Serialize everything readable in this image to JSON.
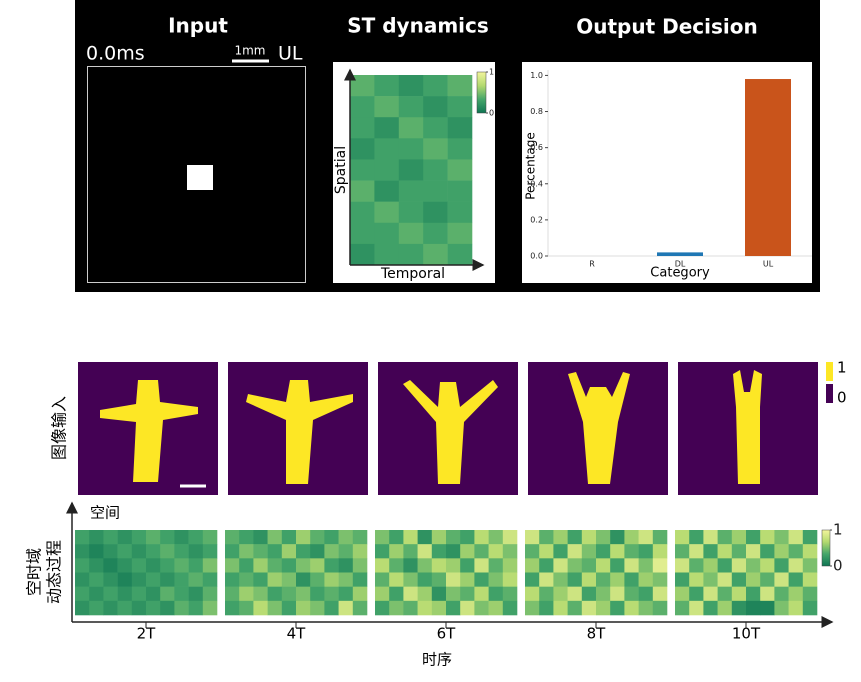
{
  "input_panel": {
    "title": "Input",
    "time": "0.0ms",
    "scale_label": "1mm",
    "class_label": "UL",
    "output_title": "Output Decision"
  },
  "image_row": {
    "label": "图像输入",
    "colorbar_ticks": [
      1,
      0
    ],
    "colors": [
      "#fde725",
      "#440154"
    ]
  },
  "chart_data": [
    {
      "type": "heatmap",
      "title": "ST dynamics",
      "x_label": "Temporal",
      "y_label": "Spatial",
      "zlim": [
        0,
        1
      ],
      "zticks": [
        1,
        0
      ],
      "colormap": [
        "#0f7553",
        "#45a66a",
        "#b3d96f",
        "#f3f59c"
      ],
      "values": [
        [
          0.4,
          0.3,
          0.2,
          0.3,
          0.4
        ],
        [
          0.3,
          0.4,
          0.3,
          0.2,
          0.3
        ],
        [
          0.3,
          0.2,
          0.4,
          0.3,
          0.2
        ],
        [
          0.2,
          0.3,
          0.3,
          0.4,
          0.3
        ],
        [
          0.3,
          0.3,
          0.2,
          0.3,
          0.4
        ],
        [
          0.4,
          0.2,
          0.3,
          0.3,
          0.3
        ],
        [
          0.3,
          0.4,
          0.3,
          0.2,
          0.3
        ],
        [
          0.3,
          0.3,
          0.4,
          0.3,
          0.4
        ],
        [
          0.2,
          0.3,
          0.3,
          0.4,
          0.3
        ]
      ]
    },
    {
      "type": "bar",
      "x_label": "Category",
      "y_label": "Percentage",
      "categories": [
        "R",
        "DL",
        "UL"
      ],
      "values": [
        0,
        0.02,
        0.98
      ],
      "colors": [
        "#1f77b4",
        "#1f77b4",
        "#c9541b"
      ],
      "ylim": [
        0,
        1.03
      ],
      "yticks": [
        {
          "value": 0,
          "label": "0.0"
        },
        {
          "value": 0.2,
          "label": "0.2"
        },
        {
          "value": 0.4,
          "label": "0.4"
        },
        {
          "value": 0.6,
          "label": "0.6"
        },
        {
          "value": 0.8,
          "label": "0.8"
        },
        {
          "value": 1,
          "label": "1.0"
        }
      ]
    },
    {
      "type": "heatmap",
      "x_label": "时序",
      "y_label": "空间",
      "row_label": [
        "空时域",
        "动态过程"
      ],
      "categories": [
        "2T",
        "4T",
        "6T",
        "8T",
        "10T"
      ],
      "zlim": [
        0,
        1
      ],
      "zticks": [
        1,
        0
      ],
      "colormap": [
        "#0f7553",
        "#45a66a",
        "#b3d96f",
        "#f3f59c"
      ],
      "values": [
        [
          [
            0.3,
            0.2,
            0.3,
            0.2,
            0.3,
            0.4,
            0.3,
            0.2,
            0.3,
            0.4
          ],
          [
            0.2,
            0.1,
            0.2,
            0.3,
            0.2,
            0.3,
            0.4,
            0.3,
            0.2,
            0.3
          ],
          [
            0.3,
            0.2,
            0.1,
            0.2,
            0.3,
            0.2,
            0.3,
            0.4,
            0.3,
            0.5
          ],
          [
            0.2,
            0.3,
            0.2,
            0.1,
            0.2,
            0.3,
            0.2,
            0.3,
            0.4,
            0.3
          ],
          [
            0.3,
            0.2,
            0.3,
            0.2,
            0.3,
            0.2,
            0.4,
            0.3,
            0.2,
            0.4
          ],
          [
            0.2,
            0.3,
            0.2,
            0.3,
            0.2,
            0.3,
            0.2,
            0.4,
            0.3,
            0.5
          ]
        ],
        [
          [
            0.4,
            0.3,
            0.2,
            0.5,
            0.3,
            0.6,
            0.4,
            0.3,
            0.5,
            0.4
          ],
          [
            0.3,
            0.5,
            0.4,
            0.3,
            0.6,
            0.3,
            0.2,
            0.5,
            0.4,
            0.6
          ],
          [
            0.5,
            0.3,
            0.6,
            0.4,
            0.3,
            0.5,
            0.6,
            0.3,
            0.2,
            0.5
          ],
          [
            0.3,
            0.4,
            0.3,
            0.6,
            0.5,
            0.2,
            0.4,
            0.6,
            0.5,
            0.3
          ],
          [
            0.4,
            0.6,
            0.5,
            0.3,
            0.4,
            0.5,
            0.3,
            0.4,
            0.3,
            0.6
          ],
          [
            0.3,
            0.4,
            0.7,
            0.5,
            0.3,
            0.6,
            0.5,
            0.3,
            0.8,
            0.4
          ]
        ],
        [
          [
            0.5,
            0.3,
            0.7,
            0.2,
            0.6,
            0.4,
            0.3,
            0.7,
            0.5,
            0.8
          ],
          [
            0.3,
            0.6,
            0.4,
            0.8,
            0.3,
            0.2,
            0.6,
            0.4,
            0.7,
            0.5
          ],
          [
            0.7,
            0.4,
            0.2,
            0.5,
            0.7,
            0.6,
            0.3,
            0.8,
            0.4,
            0.6
          ],
          [
            0.4,
            0.7,
            0.5,
            0.3,
            0.4,
            0.8,
            0.6,
            0.3,
            0.5,
            0.7
          ],
          [
            0.6,
            0.3,
            0.8,
            0.6,
            0.2,
            0.5,
            0.4,
            0.7,
            0.3,
            0.4
          ],
          [
            0.3,
            0.5,
            0.4,
            0.7,
            0.6,
            0.3,
            0.8,
            0.5,
            0.6,
            0.3
          ]
        ],
        [
          [
            0.8,
            0.4,
            0.6,
            0.3,
            0.7,
            0.5,
            0.2,
            0.6,
            0.8,
            0.4
          ],
          [
            0.4,
            0.7,
            0.3,
            0.8,
            0.5,
            0.3,
            0.7,
            0.4,
            0.3,
            0.7
          ],
          [
            0.6,
            0.3,
            0.8,
            0.5,
            0.4,
            0.7,
            0.3,
            0.8,
            0.5,
            0.9
          ],
          [
            0.3,
            0.8,
            0.5,
            0.3,
            0.7,
            0.4,
            0.6,
            0.3,
            0.6,
            0.5
          ],
          [
            0.7,
            0.4,
            0.6,
            0.8,
            0.3,
            0.5,
            0.8,
            0.4,
            0.3,
            0.8
          ],
          [
            0.5,
            0.3,
            0.7,
            0.4,
            0.8,
            0.6,
            0.3,
            0.7,
            0.5,
            0.4
          ]
        ],
        [
          [
            0.7,
            0.3,
            0.8,
            0.4,
            0.6,
            0.3,
            0.7,
            0.5,
            0.8,
            0.3
          ],
          [
            0.4,
            0.8,
            0.3,
            0.7,
            0.4,
            0.8,
            0.3,
            0.6,
            0.4,
            0.7
          ],
          [
            0.8,
            0.4,
            0.6,
            0.3,
            0.8,
            0.5,
            0.7,
            0.3,
            0.8,
            0.5
          ],
          [
            0.3,
            0.7,
            0.5,
            0.8,
            0.3,
            0.6,
            0.4,
            0.8,
            0.3,
            0.7
          ],
          [
            0.6,
            0.3,
            0.8,
            0.4,
            0.7,
            0.3,
            0.8,
            0.4,
            0.6,
            0.4
          ],
          [
            0.4,
            0.8,
            0.3,
            0.6,
            0.2,
            0.1,
            0.1,
            0.5,
            0.7,
            0.3
          ]
        ]
      ]
    }
  ]
}
